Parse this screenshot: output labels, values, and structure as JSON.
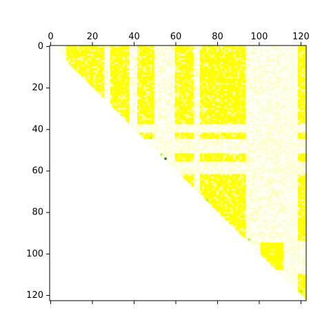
{
  "chart_data": {
    "type": "heatmap",
    "title": "",
    "xlabel": "",
    "ylabel": "",
    "xlim": [
      0,
      123
    ],
    "ylim": [
      123,
      0
    ],
    "n": 123,
    "grid": false,
    "x_axis_position": "top",
    "x_ticks": [
      0,
      20,
      40,
      60,
      80,
      100,
      120
    ],
    "y_ticks": [
      0,
      20,
      40,
      60,
      80,
      100,
      120
    ],
    "matrix_shape": "upper-triangular",
    "colors": {
      "low": "#fffff2",
      "mid": "#ffff66",
      "high": "#ffff00",
      "accent_green": "#aaff33",
      "accent_dark": "#228800",
      "background": "#ffffff"
    },
    "block_structure": {
      "bright_columns": [
        [
          8,
          26
        ],
        [
          29,
          38
        ],
        [
          42,
          50
        ],
        [
          60,
          69
        ],
        [
          72,
          94
        ],
        [
          119,
          123
        ]
      ],
      "pale_columns": [
        [
          26,
          29
        ],
        [
          38,
          42
        ],
        [
          50,
          60
        ],
        [
          69,
          72
        ],
        [
          94,
          113
        ]
      ],
      "pale_rows": [
        [
          38,
          42
        ],
        [
          45,
          52
        ],
        [
          56,
          62
        ],
        [
          94,
          110
        ]
      ],
      "bright_block": {
        "rows": [
          95,
          108
        ],
        "cols": [
          101,
          112
        ]
      }
    },
    "green_points": [
      [
        48,
        44
      ],
      [
        53,
        52
      ],
      [
        75,
        74
      ],
      [
        95,
        93
      ],
      [
        120,
        118
      ]
    ],
    "dark_points": [
      [
        55,
        54
      ]
    ]
  }
}
